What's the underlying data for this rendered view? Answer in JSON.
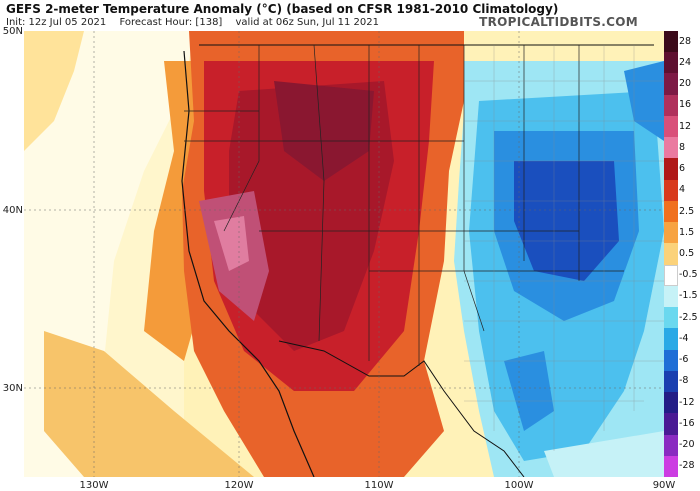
{
  "title": "GEFS 2-meter Temperature Anomaly (°C) (based on CFSR 1981-2010 Climatology)",
  "init": "Init: 12z Jul 05 2021",
  "forecast_hour": "Forecast Hour: [138]",
  "valid": "valid at 06z Sun, Jul 11 2021",
  "brand": "TROPICALTIDBITS.COM",
  "lat_labels": [
    "50N",
    "40N",
    "30N"
  ],
  "lon_labels": [
    "130W",
    "120W",
    "110W",
    "100W",
    "90W"
  ],
  "colorbar": {
    "labels": [
      "28",
      "24",
      "20",
      "16",
      "12",
      "8",
      "6",
      "4",
      "2.5",
      "1.5",
      "0.5",
      "-0.5",
      "-1.5",
      "-2.5",
      "-4",
      "-6",
      "-8",
      "-12",
      "-16",
      "-20",
      "-28"
    ],
    "colors": [
      "#3b0a1a",
      "#5e1030",
      "#7d1a45",
      "#b0305c",
      "#d9507a",
      "#ea7aa0",
      "#b01818",
      "#d83a1c",
      "#f0701e",
      "#f7a342",
      "#fbd27a",
      "#ffffff",
      "#c6f2f7",
      "#6ad8ef",
      "#2aa9e6",
      "#1f6ed6",
      "#1a3fb0",
      "#231d86",
      "#4a1a94",
      "#8a2bc1",
      "#cc3de2"
    ]
  },
  "colors": {
    "ocean_neutral": "#fff2b8",
    "warm_red": "#c8202a",
    "hot_magenta": "#c05076",
    "cool_blue": "#2a8fe0",
    "deep_blue": "#1a4fbe"
  }
}
